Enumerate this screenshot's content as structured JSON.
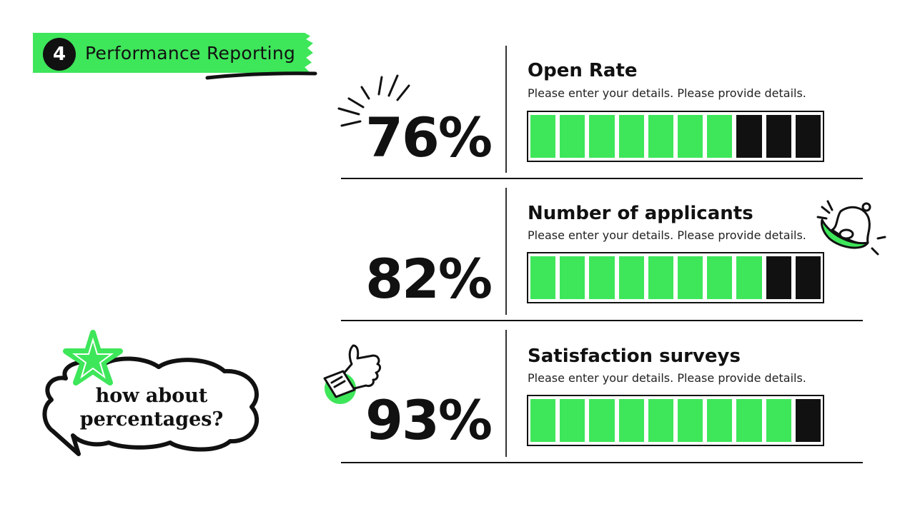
{
  "header": {
    "number": "4",
    "title": "Performance Reporting"
  },
  "bubble": {
    "text": "how about percentages?"
  },
  "metrics": [
    {
      "percent": "76%",
      "title": "Open Rate",
      "description": "Please enter your details. Please provide details.",
      "value": 0.76,
      "filled": 7,
      "total": 10
    },
    {
      "percent": "82%",
      "title": "Number of applicants",
      "description": "Please enter your details. Please provide details.",
      "value": 0.82,
      "filled": 8,
      "total": 10
    },
    {
      "percent": "93%",
      "title": "Satisfaction surveys",
      "description": "Please enter your details. Please provide details.",
      "value": 0.93,
      "filled": 9,
      "total": 10
    }
  ],
  "colors": {
    "accent": "#3ee65a",
    "ink": "#111111"
  },
  "icons": [
    "star-icon",
    "burst-icon",
    "bell-icon",
    "thumbs-up-icon"
  ]
}
